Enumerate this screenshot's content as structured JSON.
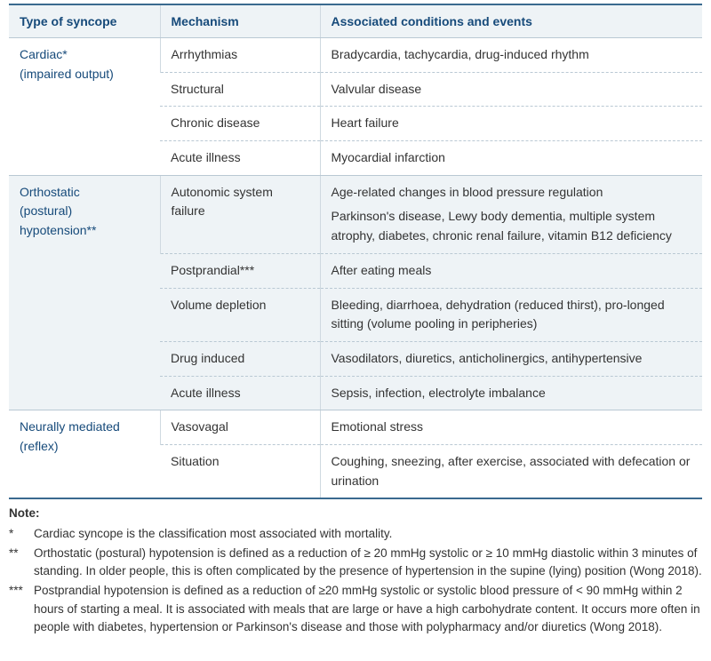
{
  "colors": {
    "header_bg": "#eef3f6",
    "header_text": "#164a7a",
    "border_strong": "#3a6a8f",
    "border_light": "#b9c8d3",
    "col_divider": "#cfd9e0",
    "shade_bg": "#eef3f6",
    "body_text": "#333333"
  },
  "columns": {
    "type": "Type of syncope",
    "mechanism": "Mechanism",
    "conditions": "Associated conditions and events"
  },
  "groups": [
    {
      "type_lines": [
        "Cardiac*",
        "(impaired output)"
      ],
      "shaded": false,
      "rows": [
        {
          "mechanism": "Arrhythmias",
          "conditions": [
            "Bradycardia, tachycardia, drug-induced rhythm"
          ]
        },
        {
          "mechanism": "Structural",
          "conditions": [
            "Valvular disease"
          ]
        },
        {
          "mechanism": "Chronic disease",
          "conditions": [
            "Heart failure"
          ]
        },
        {
          "mechanism": "Acute illness",
          "conditions": [
            "Myocardial infarction"
          ]
        }
      ]
    },
    {
      "type_lines": [
        "Orthostatic",
        "(postural)",
        "hypotension**"
      ],
      "shaded": true,
      "rows": [
        {
          "mechanism": "Autonomic system failure",
          "conditions": [
            "Age-related changes in blood pressure regulation",
            "Parkinson's disease, Lewy body dementia, multiple system atrophy, diabetes, chronic renal failure, vitamin B12 deficiency"
          ]
        },
        {
          "mechanism": "Postprandial***",
          "conditions": [
            "After eating meals"
          ]
        },
        {
          "mechanism": "Volume depletion",
          "conditions": [
            "Bleeding, diarrhoea, dehydration (reduced thirst), pro-longed sitting (volume pooling in peripheries)"
          ]
        },
        {
          "mechanism": "Drug induced",
          "conditions": [
            "Vasodilators, diuretics, anticholinergics, antihypertensive"
          ]
        },
        {
          "mechanism": "Acute illness",
          "conditions": [
            "Sepsis, infection, electrolyte imbalance"
          ]
        }
      ]
    },
    {
      "type_lines": [
        "Neurally mediated",
        "(reflex)"
      ],
      "shaded": false,
      "rows": [
        {
          "mechanism": "Vasovagal",
          "conditions": [
            "Emotional stress"
          ]
        },
        {
          "mechanism": "Situation",
          "conditions": [
            "Coughing, sneezing, after exercise, associated with defecation or urination"
          ]
        }
      ]
    }
  ],
  "notes": {
    "label": "Note:",
    "items": [
      {
        "mark": "*",
        "text": "Cardiac syncope is the classification most associated with mortality."
      },
      {
        "mark": "**",
        "text": "Orthostatic (postural) hypotension is defined as a reduction of ≥ 20 mmHg systolic or ≥ 10 mmHg diastolic within 3 minutes of standing. In older people, this is often complicated by the presence of hypertension in the supine (lying) position (Wong 2018)."
      },
      {
        "mark": "***",
        "text": "Postprandial hypotension is defined as a reduction of ≥20 mmHg systolic or systolic blood pressure of < 90 mmHg within 2 hours of starting a meal. It is associated with meals that are large or have a high carbohydrate content. It occurs more often in people with diabetes, hypertension or Parkinson's disease and those with polypharmacy and/or diuretics (Wong 2018)."
      }
    ]
  }
}
